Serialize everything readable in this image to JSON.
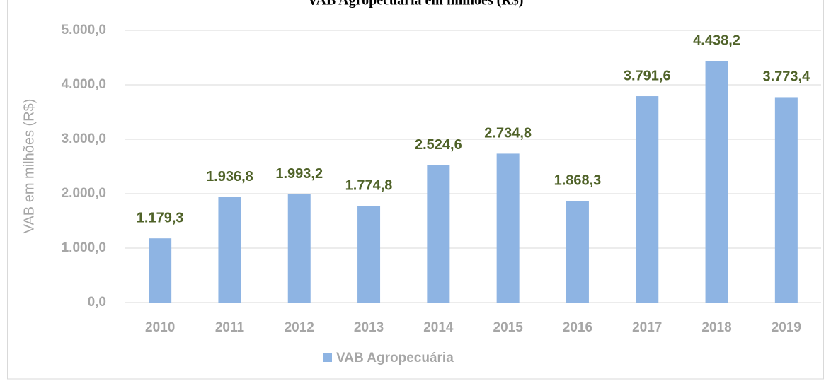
{
  "chart_data": {
    "type": "bar",
    "title": "VAB Agropecuária em milhões (R$)",
    "ylabel": "VAB em milhões (R$)",
    "categories": [
      "2010",
      "2011",
      "2012",
      "2013",
      "2014",
      "2015",
      "2016",
      "2017",
      "2018",
      "2019"
    ],
    "series": [
      {
        "name": "VAB Agropecuária",
        "color": "#8eb4e3",
        "values": [
          1179.3,
          1936.8,
          1993.2,
          1774.8,
          2524.6,
          2734.8,
          1868.3,
          3791.6,
          4438.2,
          3773.4
        ],
        "value_labels": [
          "1.179,3",
          "1.936,8",
          "1.993,2",
          "1.774,8",
          "2.524,6",
          "2.734,8",
          "1.868,3",
          "3.791,6",
          "4.438,2",
          "3.773,4"
        ]
      }
    ],
    "ylim": [
      0,
      5000
    ],
    "yticks": [
      {
        "value": 0,
        "label": "0,0"
      },
      {
        "value": 1000,
        "label": "1.000,0"
      },
      {
        "value": 2000,
        "label": "2.000,0"
      },
      {
        "value": 3000,
        "label": "3.000,0"
      },
      {
        "value": 4000,
        "label": "4.000,0"
      },
      {
        "value": 5000,
        "label": "5.000,0"
      }
    ],
    "grid": true,
    "legend": "bottom"
  }
}
